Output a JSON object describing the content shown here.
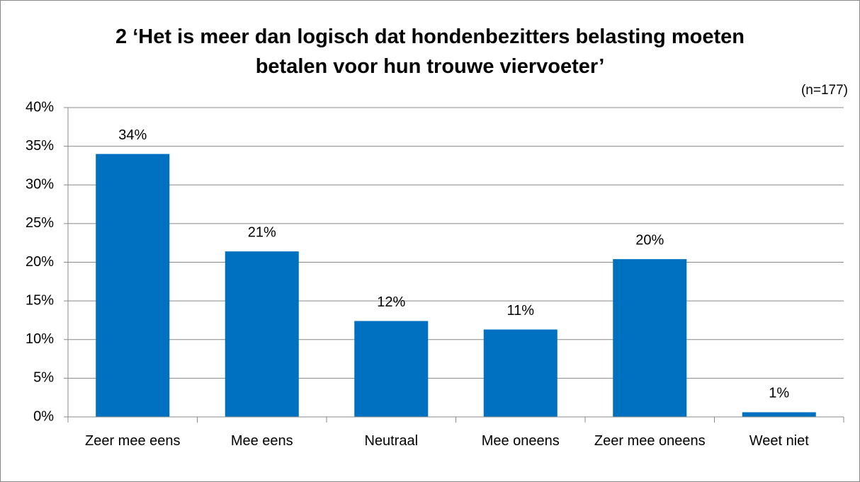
{
  "chart_data": {
    "type": "bar",
    "title": "2 ‘Het is meer dan logisch dat hondenbezitters belasting moeten betalen voor hun trouwe viervoeter’",
    "subtitle": "(n=177)",
    "categories": [
      "Zeer mee eens",
      "Mee eens",
      "Neutraal",
      "Mee oneens",
      "Zeer mee oneens",
      "Weet niet"
    ],
    "values": [
      34,
      21.4,
      12.4,
      11.3,
      20.4,
      0.6
    ],
    "value_labels": [
      "34%",
      "21%",
      "12%",
      "11%",
      "20%",
      "1%"
    ],
    "color": "#0070c0",
    "ylim": [
      0,
      40
    ],
    "yticks": [
      {
        "value": 0,
        "label": "0%"
      },
      {
        "value": 5,
        "label": "5%"
      },
      {
        "value": 10,
        "label": "10%"
      },
      {
        "value": 15,
        "label": "15%"
      },
      {
        "value": 20,
        "label": "20%"
      },
      {
        "value": 25,
        "label": "25%"
      },
      {
        "value": 30,
        "label": "30%"
      },
      {
        "value": 35,
        "label": "35%"
      },
      {
        "value": 40,
        "label": "40%"
      }
    ],
    "grid": true
  }
}
